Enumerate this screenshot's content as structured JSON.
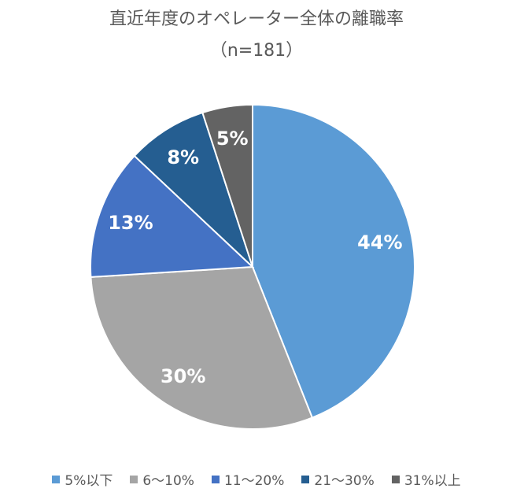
{
  "chart_data": {
    "type": "pie",
    "title": "直近年度のオペレーター全体の離職率",
    "subtitle": "（n=181）",
    "slices": [
      {
        "name": "5%以下",
        "value": 44,
        "label": "44%",
        "color": "#5b9bd5"
      },
      {
        "name": "6〜10%",
        "value": 30,
        "label": "30%",
        "color": "#a5a5a5"
      },
      {
        "name": "11〜20%",
        "value": 13,
        "label": "13%",
        "color": "#4472c4"
      },
      {
        "name": "21〜30%",
        "value": 8,
        "label": "8%",
        "color": "#255e91"
      },
      {
        "name": "31%以上",
        "value": 5,
        "label": "5%",
        "color": "#636363"
      }
    ],
    "legend_position": "bottom"
  }
}
